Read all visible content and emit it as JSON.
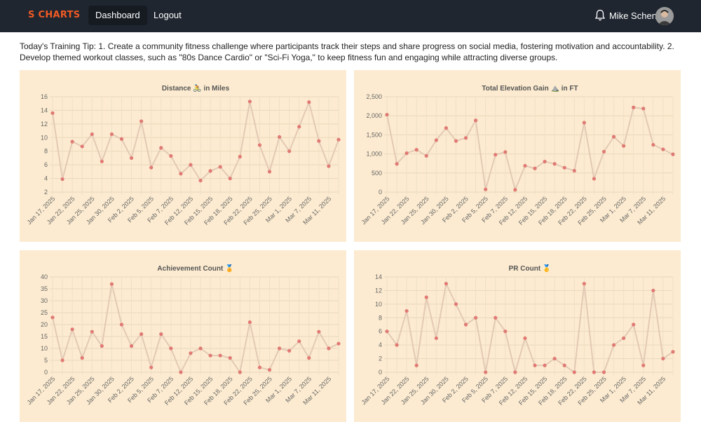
{
  "nav": {
    "logo": "S CHARTS",
    "dashboard_label": "Dashboard",
    "logout_label": "Logout",
    "user_name": "Mike Schen",
    "accent_color": "#f15a24"
  },
  "tip": {
    "text": "Today's Training Tip: 1. Create a community fitness challenge where participants track their steps and share progress on social media, fostering motivation and accountability. 2. Develop themed workout classes, such as \"80s Dance Cardio\" or \"Sci-Fi Yoga,\" to keep fitness fun and engaging while attracting diverse groups."
  },
  "chart_data": [
    {
      "type": "line",
      "title": "Distance 🚴 in Miles",
      "ylim": [
        2,
        16
      ],
      "yticks": [
        "2",
        "4",
        "6",
        "8",
        "10",
        "12",
        "14",
        "16"
      ],
      "xlabels": [
        "Jan 17, 2025",
        "Jan 22, 2025",
        "Jan 25, 2025",
        "Jan 30, 2025",
        "Feb 2, 2025",
        "Feb 5, 2025",
        "Feb 7, 2025",
        "Feb 12, 2025",
        "Feb 15, 2025",
        "Feb 18, 2025",
        "Feb 22, 2025",
        "Feb 25, 2025",
        "Mar 1, 2025",
        "Mar 7, 2025",
        "Mar 11, 2025"
      ],
      "values": [
        13.6,
        3.9,
        9.4,
        8.7,
        10.5,
        6.5,
        10.5,
        9.8,
        7.0,
        12.4,
        5.6,
        8.5,
        7.3,
        4.7,
        6.0,
        3.7,
        5.1,
        5.7,
        4.0,
        7.2,
        15.3,
        8.9,
        5.0,
        10.1,
        8.0,
        11.6,
        15.2,
        9.5,
        5.8,
        9.7
      ],
      "grid": true,
      "line_color": "#e3c9b5",
      "point_color": "#e07a74"
    },
    {
      "type": "line",
      "title": "Total Elevation Gain ⛰️ in FT",
      "ylim": [
        0,
        2500
      ],
      "yticks": [
        "0",
        "500",
        "1,000",
        "1,500",
        "2,000",
        "2,500"
      ],
      "xlabels": [
        "Jan 17, 2025",
        "Jan 22, 2025",
        "Jan 25, 2025",
        "Jan 30, 2025",
        "Feb 2, 2025",
        "Feb 5, 2025",
        "Feb 7, 2025",
        "Feb 12, 2025",
        "Feb 15, 2025",
        "Feb 18, 2025",
        "Feb 22, 2025",
        "Feb 25, 2025",
        "Mar 1, 2025",
        "Mar 7, 2025",
        "Mar 11, 2025"
      ],
      "values": [
        2030,
        740,
        1020,
        1110,
        950,
        1360,
        1680,
        1340,
        1420,
        1880,
        70,
        980,
        1050,
        60,
        690,
        620,
        800,
        740,
        640,
        560,
        1820,
        350,
        1060,
        1450,
        1210,
        2220,
        2190,
        1240,
        1120,
        990
      ],
      "grid": true,
      "line_color": "#e3c9b5",
      "point_color": "#e07a74"
    },
    {
      "type": "line",
      "title": "Achievement Count 🏅",
      "ylim": [
        0,
        40
      ],
      "yticks": [
        "0",
        "5",
        "10",
        "15",
        "20",
        "25",
        "30",
        "35",
        "40"
      ],
      "xlabels": [
        "Jan 17, 2025",
        "Jan 22, 2025",
        "Jan 25, 2025",
        "Jan 30, 2025",
        "Feb 2, 2025",
        "Feb 5, 2025",
        "Feb 7, 2025",
        "Feb 12, 2025",
        "Feb 15, 2025",
        "Feb 18, 2025",
        "Feb 22, 2025",
        "Feb 25, 2025",
        "Mar 1, 2025",
        "Mar 7, 2025",
        "Mar 11, 2025"
      ],
      "values": [
        23,
        5,
        18,
        6,
        17,
        11,
        37,
        20,
        11,
        16,
        2,
        16,
        10,
        0,
        8,
        10,
        7,
        7,
        6,
        0,
        21,
        2,
        1,
        10,
        9,
        13,
        6,
        17,
        10,
        12
      ],
      "grid": true,
      "line_color": "#e3c9b5",
      "point_color": "#e07a74"
    },
    {
      "type": "line",
      "title": "PR Count 🥇",
      "ylim": [
        0,
        14
      ],
      "yticks": [
        "0",
        "2",
        "4",
        "6",
        "8",
        "10",
        "12",
        "14"
      ],
      "xlabels": [
        "Jan 17, 2025",
        "Jan 22, 2025",
        "Jan 25, 2025",
        "Jan 30, 2025",
        "Feb 2, 2025",
        "Feb 5, 2025",
        "Feb 7, 2025",
        "Feb 12, 2025",
        "Feb 15, 2025",
        "Feb 18, 2025",
        "Feb 22, 2025",
        "Feb 25, 2025",
        "Mar 1, 2025",
        "Mar 7, 2025",
        "Mar 11, 2025"
      ],
      "values": [
        6,
        4,
        9,
        1,
        11,
        5,
        13,
        10,
        7,
        8,
        0,
        8,
        6,
        0,
        5,
        1,
        1,
        2,
        1,
        0,
        13,
        0,
        0,
        4,
        5,
        7,
        1,
        12,
        2,
        3
      ],
      "grid": true,
      "line_color": "#e3c9b5",
      "point_color": "#e07a74"
    }
  ]
}
